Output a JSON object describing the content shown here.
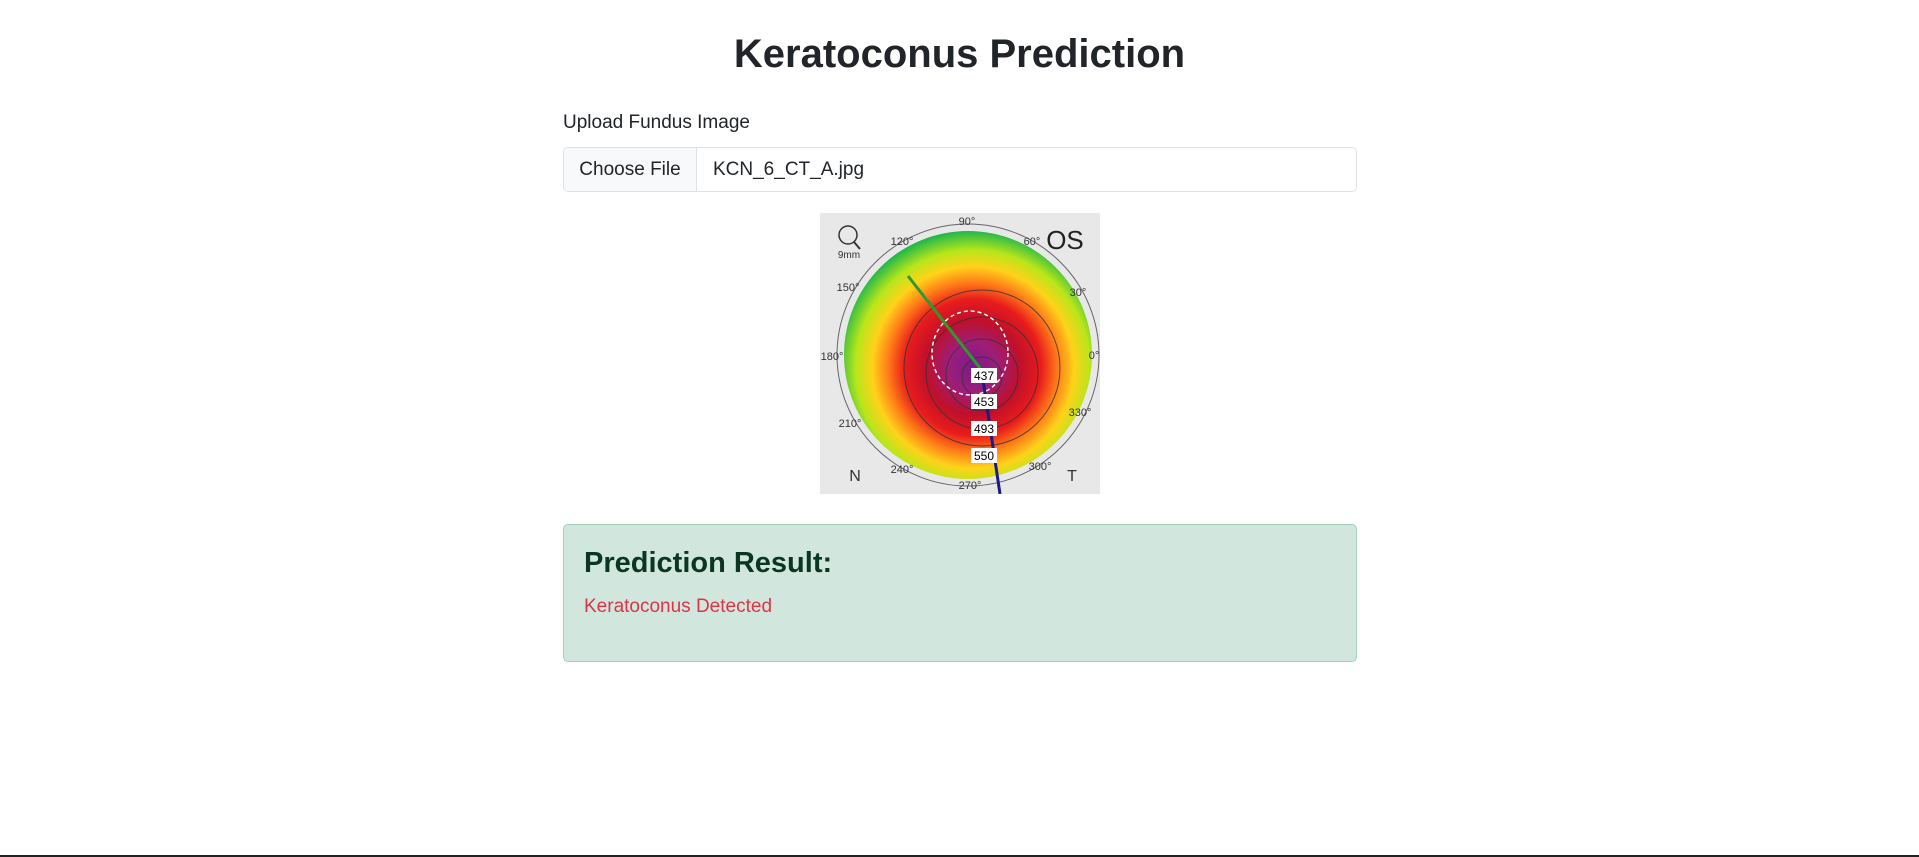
{
  "page": {
    "title": "Keratoconus Prediction"
  },
  "upload": {
    "label": "Upload Fundus Image",
    "button_label": "Choose File",
    "file_name": "KCN_6_CT_A.jpg"
  },
  "preview": {
    "eye_label": "OS",
    "zoom_label": "9mm",
    "nasal_label": "N",
    "temporal_label": "T",
    "angles": [
      "90°",
      "60°",
      "30°",
      "0°",
      "330°",
      "300°",
      "270°",
      "240°",
      "210°",
      "180°",
      "150°",
      "120°"
    ],
    "thickness_values": [
      "437",
      "453",
      "493",
      "550"
    ]
  },
  "result": {
    "heading": "Prediction Result:",
    "text": "Keratoconus Detected",
    "text_color": "#dc3545",
    "box_color": "#d1e7dd"
  }
}
